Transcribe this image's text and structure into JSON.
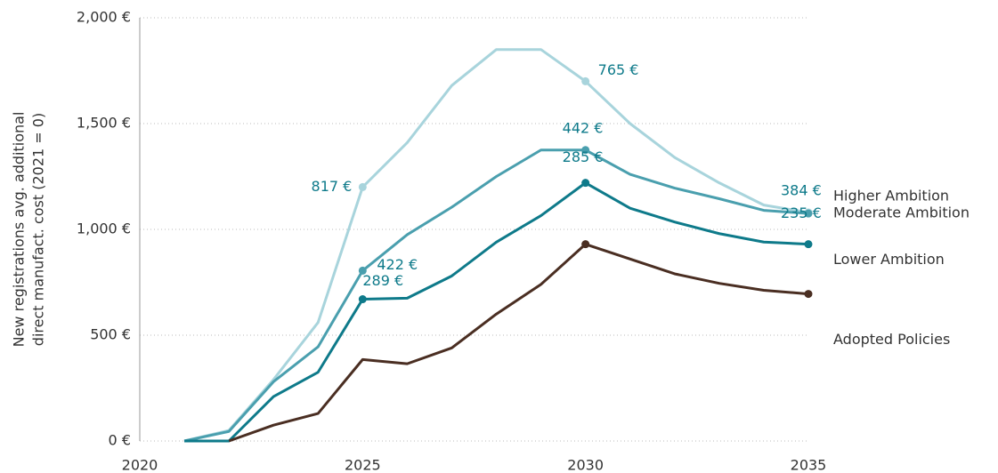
{
  "chart_data": {
    "type": "line",
    "y_label": [
      "New registrations avg. additional",
      "direct manufact. cost (2021 = 0)"
    ],
    "x": [
      2021,
      2022,
      2023,
      2024,
      2025,
      2026,
      2027,
      2028,
      2029,
      2030,
      2031,
      2032,
      2033,
      2034,
      2035
    ],
    "series": [
      {
        "name": "Higher Ambition",
        "color": "#a8d4dc",
        "label_color": "#0e7a8a",
        "markers": [
          2025,
          2030,
          2035
        ],
        "values": [
          0,
          50,
          290,
          560,
          1200,
          1410,
          1680,
          1850,
          1850,
          1700,
          1500,
          1340,
          1220,
          1115,
          1080
        ]
      },
      {
        "name": "Moderate Ambition",
        "color": "#4a9fae",
        "label_color": "#0e7a8a",
        "markers": [
          2025,
          2030,
          2035
        ],
        "values": [
          0,
          45,
          280,
          445,
          805,
          975,
          1105,
          1250,
          1375,
          1375,
          1260,
          1195,
          1145,
          1090,
          1075
        ]
      },
      {
        "name": "Lower Ambition",
        "color": "#0e7a8a",
        "label_color": "#0e7a8a",
        "markers": [
          2025,
          2030,
          2035
        ],
        "values": [
          0,
          0,
          210,
          325,
          670,
          675,
          780,
          940,
          1065,
          1220,
          1100,
          1035,
          980,
          940,
          930
        ]
      },
      {
        "name": "Adopted Policies",
        "color": "#4a2e22",
        "label_color": "#4a2e22",
        "markers": [
          2030,
          2035
        ],
        "values": [
          null,
          0,
          75,
          130,
          385,
          365,
          440,
          600,
          740,
          930,
          860,
          790,
          745,
          712,
          695
        ]
      }
    ],
    "annotations": [
      {
        "label": "817 €",
        "x": 2025,
        "series": 0
      },
      {
        "label": "765 €",
        "x": 2030,
        "series": 0
      },
      {
        "label": "442 €",
        "x": 2030,
        "series": 1
      },
      {
        "label": "422 €",
        "x": 2025,
        "series": 1
      },
      {
        "label": "289 €",
        "x": 2025,
        "series": 2
      },
      {
        "label": "285 €",
        "x": 2030,
        "series": 2
      },
      {
        "label": "384 €",
        "x": 2035,
        "series": 0
      },
      {
        "label": "235 €",
        "x": 2035,
        "series": 2
      }
    ],
    "xlim": [
      2020,
      2035
    ],
    "xticks": [
      2020,
      2025,
      2030,
      2035
    ],
    "ylim": [
      0,
      2000
    ],
    "yticks": [
      {
        "value": 0,
        "label": "0 €"
      },
      {
        "value": 500,
        "label": "500 €"
      },
      {
        "value": 1000,
        "label": "1,000 €"
      },
      {
        "value": 1500,
        "label": "1,500 €"
      },
      {
        "value": 2000,
        "label": "2,000 €"
      }
    ],
    "grid": true
  }
}
